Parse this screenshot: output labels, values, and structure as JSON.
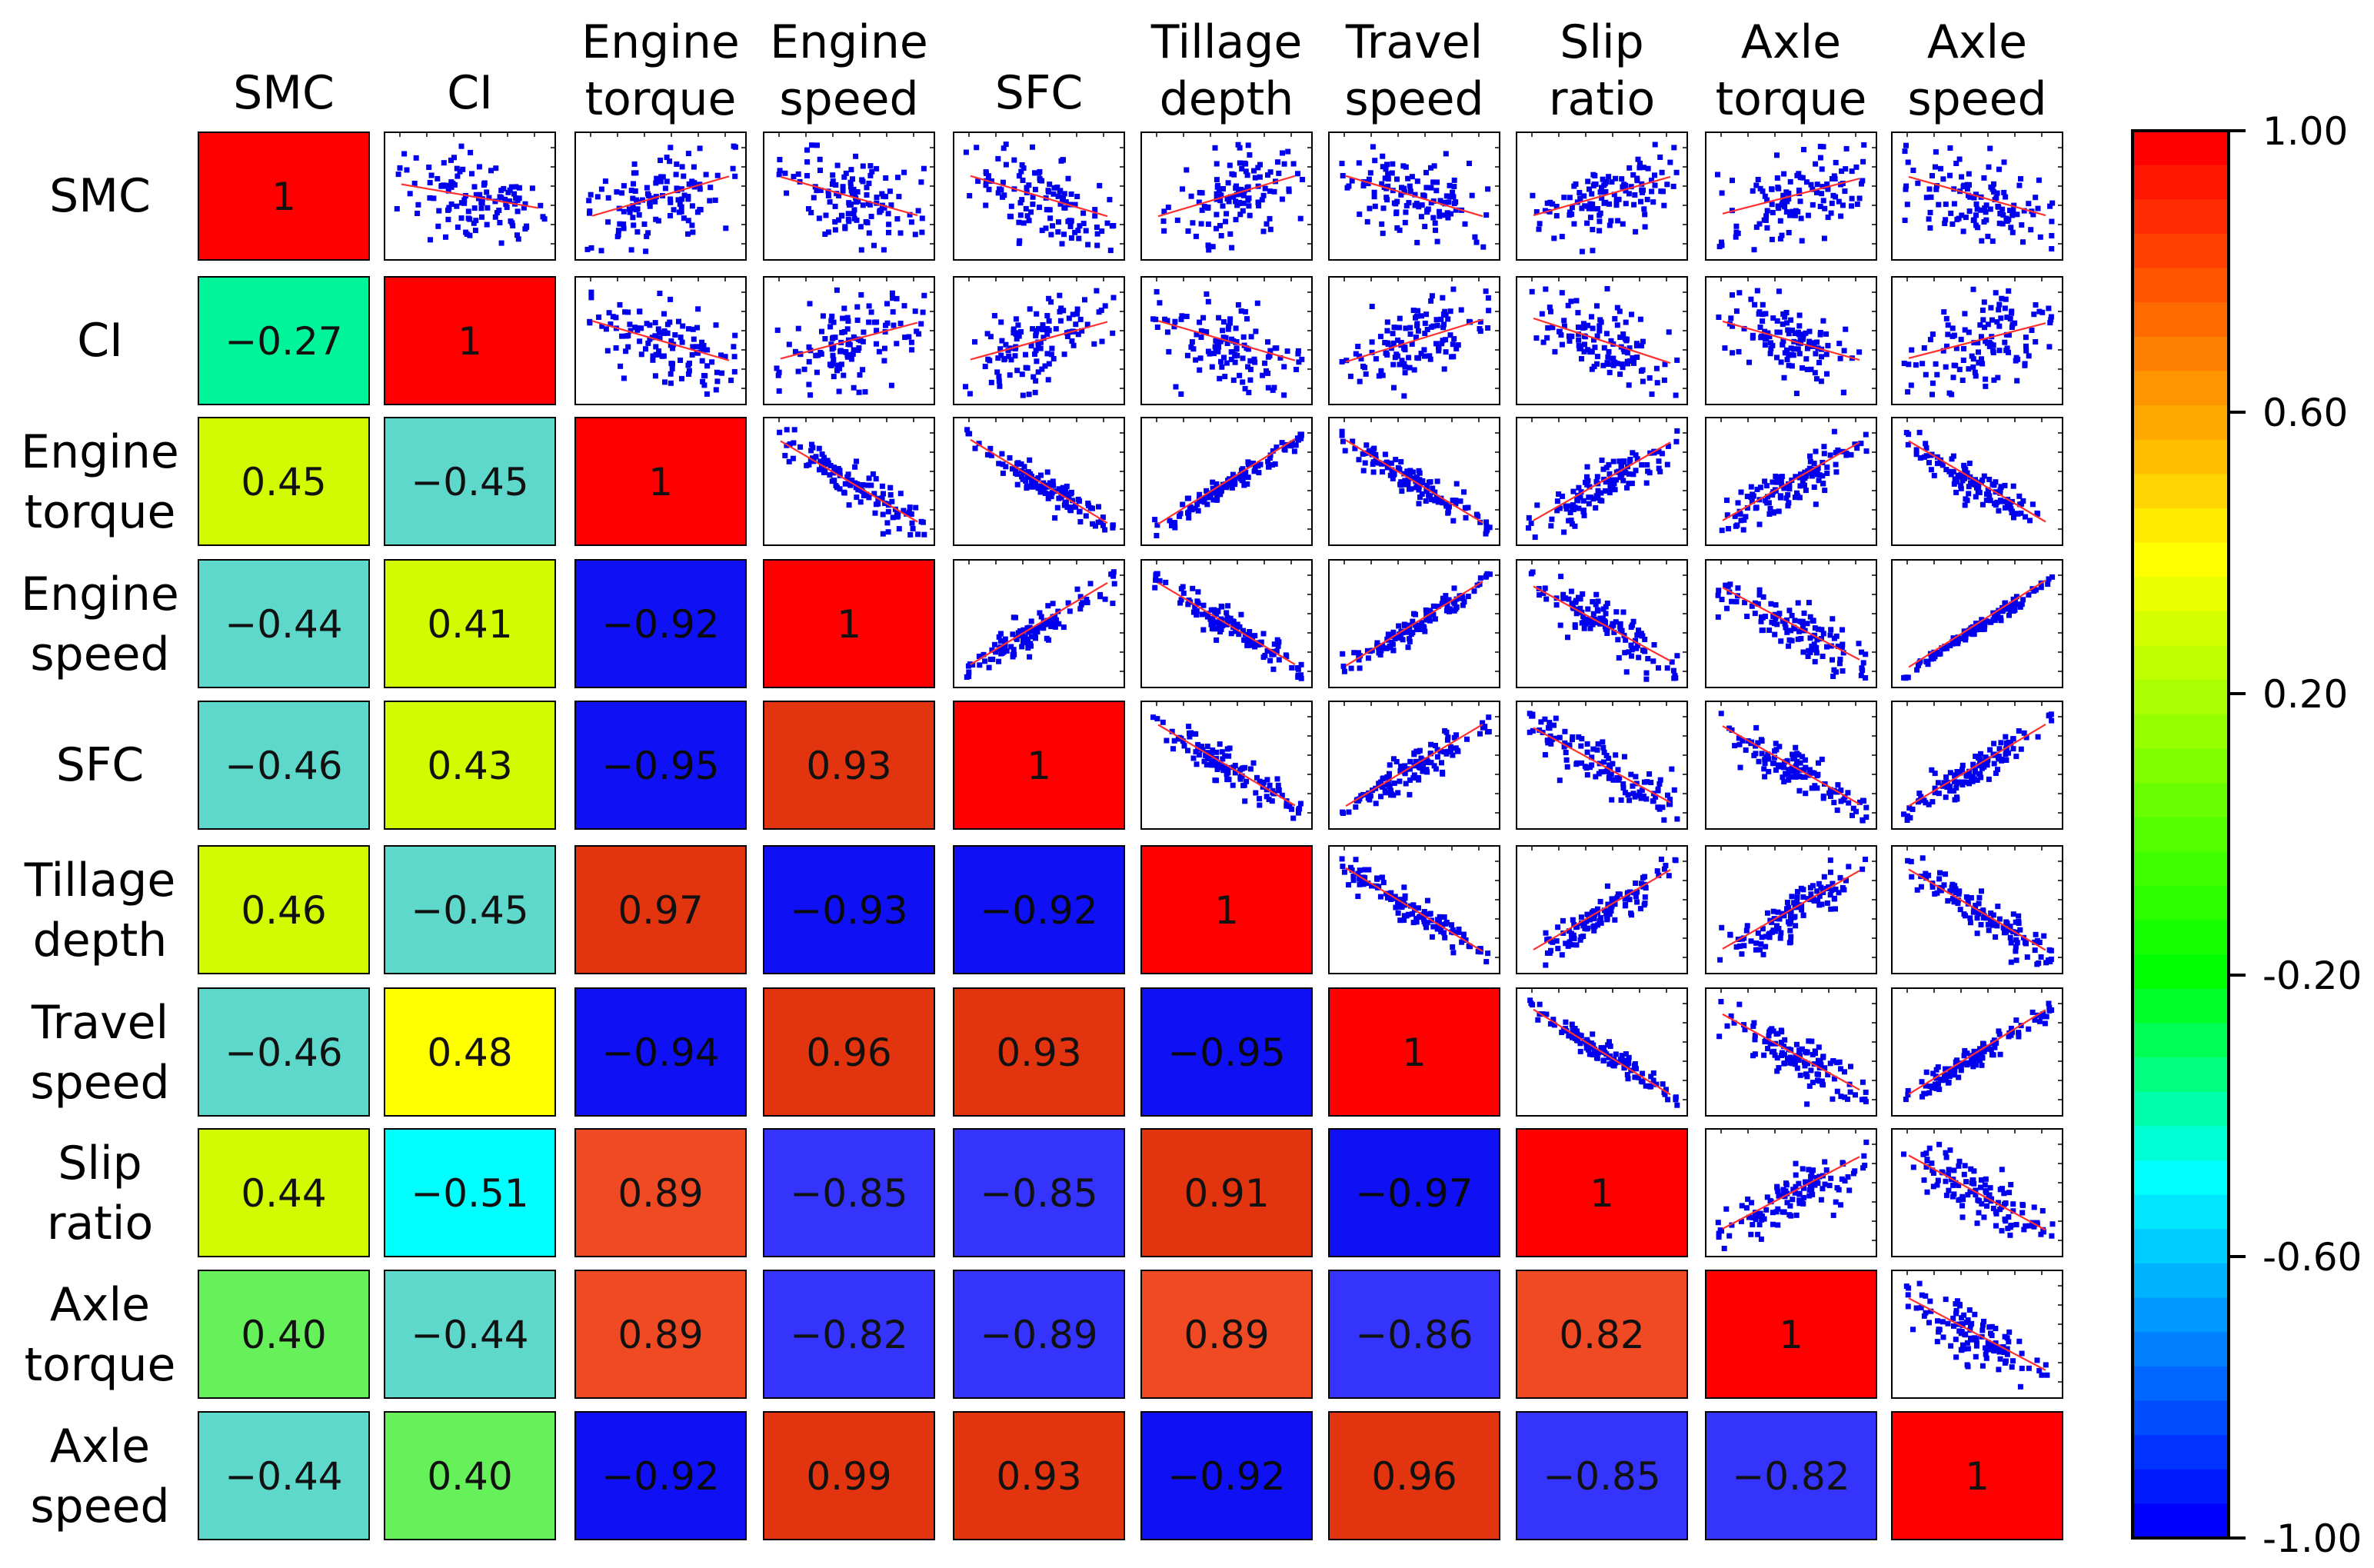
{
  "chart_data": {
    "type": "heatmap",
    "title": "",
    "subtype": "correlation matrix with pairwise scatter plots (upper triangle)",
    "variables": [
      "SMC",
      "CI",
      "Engine torque",
      "Engine speed",
      "SFC",
      "Tillage depth",
      "Travel speed",
      "Slip ratio",
      "Axle torque",
      "Axle speed"
    ],
    "header_lines": [
      [
        "SMC"
      ],
      [
        "CI"
      ],
      [
        "Engine",
        "torque"
      ],
      [
        "Engine",
        "speed"
      ],
      [
        "SFC"
      ],
      [
        "Tillage",
        "depth"
      ],
      [
        "Travel",
        "speed"
      ],
      [
        "Slip",
        "ratio"
      ],
      [
        "Axle",
        "torque"
      ],
      [
        "Axle",
        "speed"
      ]
    ],
    "lower_triangle_labels": [
      [
        "1"
      ],
      [
        "−0.27",
        "1"
      ],
      [
        "0.45",
        "−0.45",
        "1"
      ],
      [
        "−0.44",
        "0.41",
        "−0.92",
        "1"
      ],
      [
        "−0.46",
        "0.43",
        "−0.95",
        "0.93",
        "1"
      ],
      [
        "0.46",
        "−0.45",
        "0.97",
        "−0.93",
        "−0.92",
        "1"
      ],
      [
        "−0.46",
        "0.48",
        "−0.94",
        "0.96",
        "0.93",
        "−0.95",
        "1"
      ],
      [
        "0.44",
        "−0.51",
        "0.89",
        "−0.85",
        "−0.85",
        "0.91",
        "−0.97",
        "1"
      ],
      [
        "0.40",
        "−0.44",
        "0.89",
        "−0.82",
        "−0.89",
        "0.89",
        "−0.86",
        "0.82",
        "1"
      ],
      [
        "−0.44",
        "0.40",
        "−0.92",
        "0.99",
        "0.93",
        "−0.92",
        "0.96",
        "−0.85",
        "−0.82",
        "1"
      ]
    ],
    "correlation_values": [
      [
        1
      ],
      [
        -0.27,
        1
      ],
      [
        0.45,
        -0.45,
        1
      ],
      [
        -0.44,
        0.41,
        -0.92,
        1
      ],
      [
        -0.46,
        0.43,
        -0.95,
        0.93,
        1
      ],
      [
        0.46,
        -0.45,
        0.97,
        -0.93,
        -0.92,
        1
      ],
      [
        -0.46,
        0.48,
        -0.94,
        0.96,
        0.93,
        -0.95,
        1
      ],
      [
        0.44,
        -0.51,
        0.89,
        -0.85,
        -0.85,
        0.91,
        -0.97,
        1
      ],
      [
        0.4,
        -0.44,
        0.89,
        -0.82,
        -0.89,
        0.89,
        -0.86,
        0.82,
        1
      ],
      [
        -0.44,
        0.4,
        -0.92,
        0.99,
        0.93,
        -0.92,
        0.96,
        -0.85,
        -0.82,
        1
      ]
    ],
    "colorbar": {
      "range": [
        -1.0,
        1.0
      ],
      "tick_labels": [
        "1.00",
        "0.60",
        "0.20",
        "-0.20",
        "-0.60",
        "-1.00"
      ],
      "tick_values": [
        1.0,
        0.6,
        0.2,
        -0.2,
        -0.6,
        -1.0
      ],
      "colors_top_to_bottom": [
        "#ff0000",
        "#ff1500",
        "#ff2b00",
        "#ff4000",
        "#ff5500",
        "#ff6a00",
        "#ff8000",
        "#ff9500",
        "#ffaa00",
        "#ffbf00",
        "#ffd400",
        "#ffea00",
        "#ffff00",
        "#eaff00",
        "#d4ff00",
        "#bfff00",
        "#aaff00",
        "#95ff00",
        "#80ff00",
        "#6aff00",
        "#55ff00",
        "#40ff00",
        "#2bff00",
        "#15ff00",
        "#00ff00",
        "#00ff2b",
        "#00ff55",
        "#00ff80",
        "#00ffaa",
        "#00ffd4",
        "#00ffff",
        "#00e6ff",
        "#00ccff",
        "#00b3ff",
        "#0099ff",
        "#0080ff",
        "#0066ff",
        "#004dff",
        "#0033ff",
        "#001aff",
        "#0000ff"
      ]
    },
    "cell_colors": {
      "diagonal": "#ff0000",
      "strong_positive": "#e2340e",
      "positive_high": "#f04a24",
      "strong_negative": "#1010f5",
      "negative_high": "#3434fc",
      "moderate_positive": "#d2fa00",
      "yellow": "#ffff00",
      "green": "#66f05a",
      "teal": "#5fd8cc",
      "cyan": "#00ffff",
      "green_cyan": "#00f59a"
    },
    "scatter_style": {
      "point_color": "#0000ee",
      "fit_line_color": "#ff3030"
    }
  }
}
